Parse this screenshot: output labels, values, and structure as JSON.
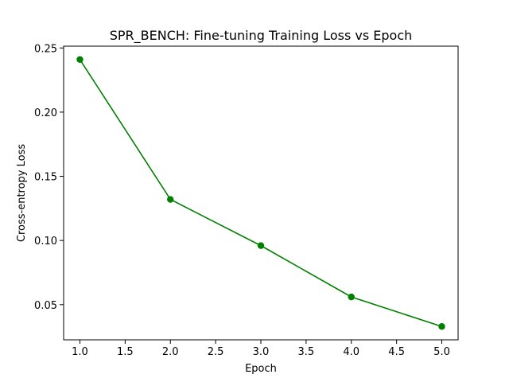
{
  "chart_data": {
    "type": "line",
    "title": "SPR_BENCH: Fine-tuning Training Loss vs Epoch",
    "xlabel": "Epoch",
    "ylabel": "Cross-entropy Loss",
    "x": [
      1.0,
      2.0,
      3.0,
      4.0,
      5.0
    ],
    "series": [
      {
        "values": [
          0.241,
          0.132,
          0.096,
          0.056,
          0.033
        ],
        "color": "#008000"
      }
    ],
    "xlim": [
      0.82,
      5.18
    ],
    "ylim": [
      0.0226,
      0.2514
    ],
    "xticks": [
      1.0,
      1.5,
      2.0,
      2.5,
      3.0,
      3.5,
      4.0,
      4.5,
      5.0
    ],
    "xtick_labels": [
      "1.0",
      "1.5",
      "2.0",
      "2.5",
      "3.0",
      "3.5",
      "4.0",
      "4.5",
      "5.0"
    ],
    "yticks": [
      0.05,
      0.1,
      0.15,
      0.2,
      0.25
    ],
    "ytick_labels": [
      "0.05",
      "0.10",
      "0.15",
      "0.20",
      "0.25"
    ],
    "grid": false,
    "legend": "none",
    "marker": "circle"
  }
}
